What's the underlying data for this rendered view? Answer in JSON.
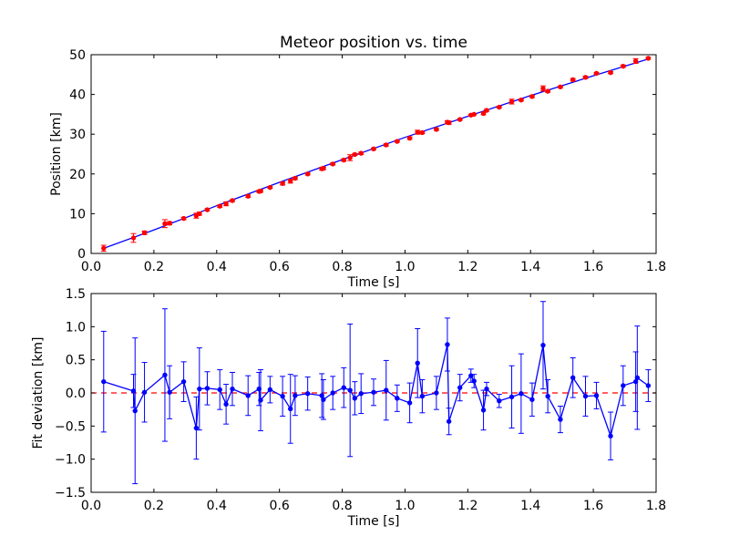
{
  "chart_data": [
    {
      "type": "scatter",
      "title": "Meteor position vs. time",
      "xlabel": "Time [s]",
      "ylabel": "Position [km]",
      "xlim": [
        0.0,
        1.8
      ],
      "ylim": [
        0,
        50
      ],
      "xticks": [
        "0.0",
        "0.2",
        "0.4",
        "0.6",
        "0.8",
        "1.0",
        "1.2",
        "1.4",
        "1.6",
        "1.8"
      ],
      "yticks": [
        "0",
        "10",
        "20",
        "30",
        "40",
        "50"
      ],
      "grid": false,
      "series": [
        {
          "kind": "errorbar-points",
          "color": "#ff0000",
          "x": [
            0.04,
            0.135,
            0.17,
            0.235,
            0.25,
            0.295,
            0.335,
            0.345,
            0.37,
            0.41,
            0.43,
            0.45,
            0.5,
            0.535,
            0.54,
            0.57,
            0.61,
            0.635,
            0.65,
            0.69,
            0.735,
            0.74,
            0.77,
            0.805,
            0.825,
            0.84,
            0.86,
            0.9,
            0.94,
            0.975,
            1.015,
            1.04,
            1.055,
            1.1,
            1.135,
            1.14,
            1.175,
            1.21,
            1.22,
            1.25,
            1.26,
            1.3,
            1.34,
            1.37,
            1.405,
            1.44,
            1.455,
            1.495,
            1.535,
            1.575,
            1.61,
            1.655,
            1.695,
            1.735,
            1.775
          ],
          "y": [
            1.3,
            3.9,
            5.2,
            7.5,
            7.6,
            8.8,
            9.5,
            10.0,
            11.0,
            11.9,
            12.5,
            13.3,
            14.4,
            15.6,
            15.7,
            16.6,
            17.6,
            18.2,
            18.9,
            20.0,
            21.3,
            21.4,
            22.5,
            23.5,
            24.1,
            24.9,
            25.2,
            26.3,
            27.3,
            28.2,
            29.0,
            30.5,
            30.4,
            31.2,
            33.0,
            32.9,
            33.7,
            34.8,
            35.0,
            35.2,
            36.0,
            36.8,
            38.2,
            38.6,
            39.5,
            41.5,
            40.8,
            41.9,
            43.7,
            44.3,
            45.3,
            45.5,
            47.1,
            48.4,
            49.1
          ],
          "err": [
            0.76,
            1.1,
            0.45,
            1.0,
            0.4,
            0.3,
            0.62,
            0.4,
            0.25,
            0.3,
            0.5,
            0.25,
            0.3,
            0.25,
            0.3,
            0.2,
            0.4,
            0.5,
            0.3,
            0.25,
            0.35,
            0.3,
            0.25,
            0.3,
            0.75,
            0.25,
            0.3,
            0.2,
            0.3,
            0.2,
            0.3,
            0.5,
            0.25,
            0.25,
            0.4,
            0.4,
            0.2,
            0.2,
            0.1,
            0.3,
            0.25,
            0.2,
            0.6,
            0.25,
            0.3,
            0.65,
            0.25,
            0.2,
            0.3,
            0.3,
            0.2,
            0.25,
            0.3,
            0.6,
            0.25
          ]
        },
        {
          "kind": "fit-line",
          "color": "#0000ff",
          "x": [
            0.04,
            0.2,
            0.4,
            0.6,
            0.8,
            1.0,
            1.2,
            1.4,
            1.6,
            1.775
          ],
          "y": [
            1.3,
            5.9,
            12.0,
            17.9,
            23.6,
            29.2,
            34.5,
            39.7,
            44.7,
            48.9
          ]
        }
      ]
    },
    {
      "type": "line",
      "title": "",
      "xlabel": "Time [s]",
      "ylabel": "Fit deviation [km]",
      "xlim": [
        0.0,
        1.8
      ],
      "ylim": [
        -1.5,
        1.5
      ],
      "xticks": [
        "0.0",
        "0.2",
        "0.4",
        "0.6",
        "0.8",
        "1.0",
        "1.2",
        "1.4",
        "1.6",
        "1.8"
      ],
      "yticks": [
        "−1.5",
        "−1.0",
        "−0.5",
        "0.0",
        "0.5",
        "1.0",
        "1.5"
      ],
      "grid": false,
      "reference_line": {
        "y": 0.0,
        "color": "#ff0000",
        "style": "dashed"
      },
      "series": [
        {
          "kind": "errorbar-line",
          "color": "#0000ff",
          "x": [
            0.04,
            0.135,
            0.14,
            0.17,
            0.235,
            0.25,
            0.295,
            0.335,
            0.345,
            0.37,
            0.41,
            0.43,
            0.45,
            0.5,
            0.535,
            0.54,
            0.57,
            0.61,
            0.635,
            0.65,
            0.69,
            0.735,
            0.74,
            0.77,
            0.805,
            0.825,
            0.84,
            0.86,
            0.9,
            0.94,
            0.975,
            1.015,
            1.04,
            1.055,
            1.1,
            1.135,
            1.14,
            1.175,
            1.21,
            1.22,
            1.25,
            1.26,
            1.3,
            1.34,
            1.37,
            1.405,
            1.44,
            1.455,
            1.495,
            1.535,
            1.575,
            1.61,
            1.655,
            1.695,
            1.735,
            1.74,
            1.775
          ],
          "y": [
            0.17,
            0.03,
            -0.27,
            0.01,
            0.27,
            0.01,
            0.17,
            -0.53,
            0.06,
            0.07,
            0.05,
            -0.17,
            0.06,
            -0.04,
            0.06,
            -0.11,
            0.05,
            -0.05,
            -0.24,
            -0.04,
            -0.01,
            -0.04,
            -0.1,
            0.0,
            0.08,
            0.04,
            -0.08,
            -0.01,
            0.01,
            0.04,
            -0.08,
            -0.15,
            0.45,
            -0.05,
            0.0,
            0.73,
            -0.43,
            0.08,
            0.26,
            0.18,
            -0.26,
            0.06,
            -0.12,
            -0.06,
            -0.01,
            -0.1,
            0.72,
            -0.05,
            -0.4,
            0.23,
            -0.05,
            -0.04,
            -0.65,
            0.11,
            0.17,
            0.23,
            0.11
          ],
          "err": [
            0.76,
            0.25,
            1.1,
            0.45,
            1.0,
            0.4,
            0.3,
            0.47,
            0.62,
            0.25,
            0.3,
            0.3,
            0.25,
            0.3,
            0.25,
            0.46,
            0.2,
            0.3,
            0.52,
            0.3,
            0.25,
            0.33,
            0.3,
            0.25,
            0.3,
            1.0,
            0.25,
            0.3,
            0.2,
            0.45,
            0.2,
            0.3,
            0.52,
            0.25,
            0.25,
            0.4,
            0.2,
            0.2,
            0.1,
            0.1,
            0.3,
            0.1,
            0.1,
            0.47,
            0.6,
            0.25,
            0.66,
            0.25,
            0.2,
            0.3,
            0.3,
            0.2,
            0.36,
            0.3,
            0.45,
            0.78,
            0.24
          ]
        }
      ]
    }
  ]
}
